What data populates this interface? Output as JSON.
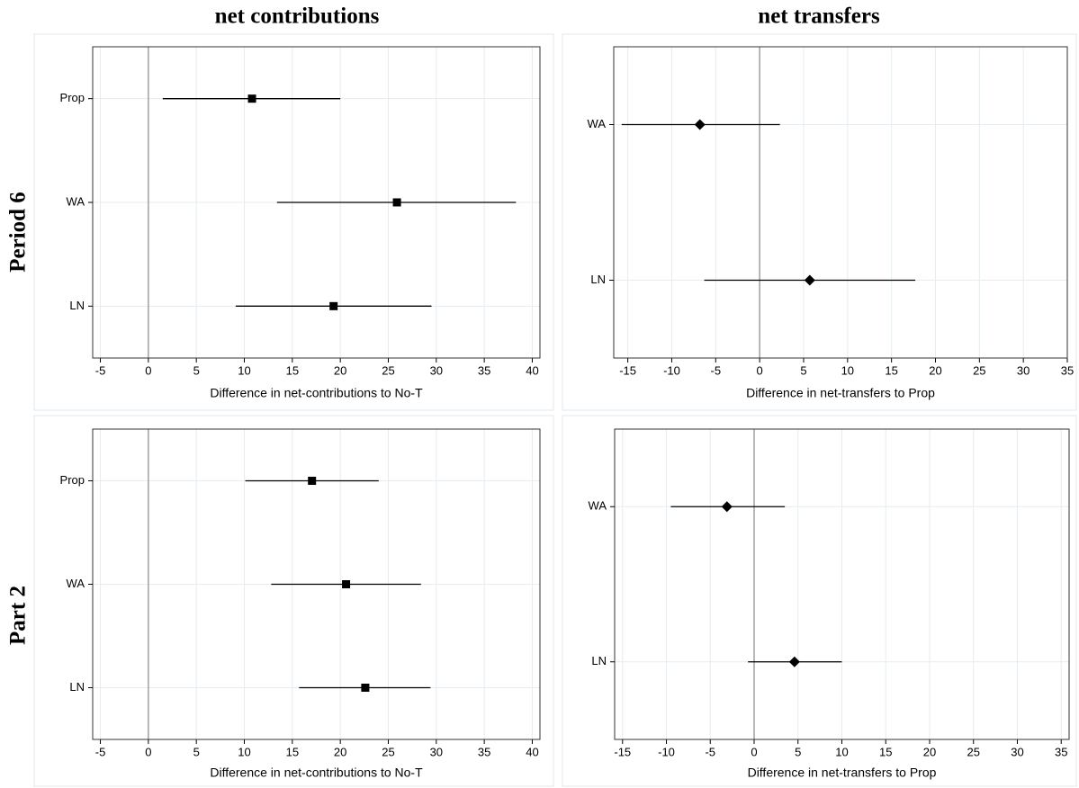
{
  "column_titles": [
    "net contributions",
    "net transfers"
  ],
  "row_titles": [
    "Period 6",
    "Part 2"
  ],
  "chart_data": [
    {
      "type": "dot",
      "marker": "square",
      "color": "#000000",
      "grid": true,
      "reference_line": 0,
      "categories": [
        "Prop",
        "WA",
        "LN"
      ],
      "values": [
        10.8,
        25.9,
        19.3
      ],
      "ci_low": [
        1.5,
        13.4,
        9.1
      ],
      "ci_high": [
        20.0,
        38.3,
        29.5
      ],
      "xlabel": "Difference in net-contributions to No-T",
      "xlim": [
        -5.8,
        40.8
      ],
      "xticks": [
        -5,
        0,
        5,
        10,
        15,
        20,
        25,
        30,
        35,
        40
      ]
    },
    {
      "type": "dot",
      "marker": "diamond",
      "color": "#000000",
      "grid": true,
      "reference_line": 0,
      "categories": [
        "WA",
        "LN"
      ],
      "values": [
        -6.8,
        5.7
      ],
      "ci_low": [
        -15.7,
        -6.3
      ],
      "ci_high": [
        2.3,
        17.7
      ],
      "xlabel": "Difference in net-transfers to Prop",
      "xlim": [
        -16.6,
        35.0
      ],
      "xticks": [
        -15,
        -10,
        -5,
        0,
        5,
        10,
        15,
        20,
        25,
        30,
        35
      ]
    },
    {
      "type": "dot",
      "marker": "square",
      "color": "#000000",
      "grid": true,
      "reference_line": 0,
      "categories": [
        "Prop",
        "WA",
        "LN"
      ],
      "values": [
        17.05,
        20.6,
        22.6
      ],
      "ci_low": [
        10.1,
        12.8,
        15.7
      ],
      "ci_high": [
        24.0,
        28.4,
        29.4
      ],
      "xlabel": "Difference in net-contributions to No-T",
      "xlim": [
        -5.8,
        40.8
      ],
      "xticks": [
        -5,
        0,
        5,
        10,
        15,
        20,
        25,
        30,
        35,
        40
      ]
    },
    {
      "type": "dot",
      "marker": "diamond",
      "color": "#000000",
      "grid": true,
      "reference_line": 0,
      "categories": [
        "WA",
        "LN"
      ],
      "values": [
        -3.1,
        4.6
      ],
      "ci_low": [
        -9.5,
        -0.7
      ],
      "ci_high": [
        3.5,
        10.0
      ],
      "xlabel": "Difference in net-transfers to Prop",
      "xlim": [
        -15.9,
        35.9
      ],
      "xticks": [
        -15,
        -10,
        -5,
        0,
        5,
        10,
        15,
        20,
        25,
        30,
        35
      ]
    }
  ]
}
